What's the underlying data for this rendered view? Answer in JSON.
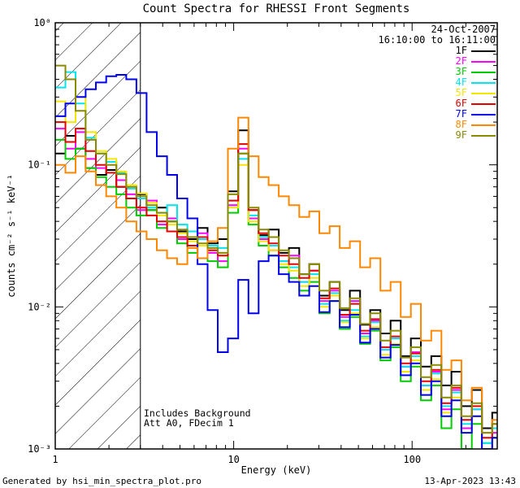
{
  "title": "Count Spectra for RHESSI Front Segments",
  "legend": {
    "date": "24-Oct-2007",
    "time": "16:10:00 to 16:11:00"
  },
  "annotations": {
    "line1": "Includes Background",
    "line2": "Att A0, FDecim 1"
  },
  "footer": {
    "left": "Generated by hsi_min_spectra_plot.pro",
    "right": "13-Apr-2023 13:43"
  },
  "axes": {
    "xlabel": "Energy (keV)",
    "ylabel": "counts cm⁻² s⁻¹ keV⁻¹"
  },
  "chart_data": {
    "type": "line",
    "subtype": "stepped-histogram-log-log",
    "x_scale": "log",
    "y_scale": "log",
    "xlim": [
      1,
      300
    ],
    "ylim": [
      0.001,
      1
    ],
    "grid": false,
    "legend_position": "top-right",
    "x_ticks": [
      {
        "label": "1",
        "value": 1
      },
      {
        "label": "10",
        "value": 10
      },
      {
        "label": "100",
        "value": 100
      }
    ],
    "y_ticks": [
      {
        "label": "10⁰",
        "value": 1
      },
      {
        "label": "10⁻¹",
        "value": 0.1
      },
      {
        "label": "10⁻²",
        "value": 0.01
      },
      {
        "label": "10⁻³",
        "value": 0.001
      }
    ],
    "hatched_region": {
      "x_start": 1,
      "x_end": 3
    },
    "x": [
      1.0,
      1.14,
      1.3,
      1.48,
      1.69,
      1.93,
      2.2,
      2.5,
      2.85,
      3.25,
      3.71,
      4.23,
      4.82,
      5.5,
      6.27,
      7.14,
      8.14,
      9.28,
      10.6,
      12.1,
      13.8,
      15.7,
      17.9,
      20.4,
      23.3,
      26.5,
      30.2,
      34.5,
      39.3,
      44.8,
      51.1,
      58.2,
      66.4,
      75.7,
      86.3,
      98.4,
      112,
      128,
      146,
      166,
      189,
      216,
      246,
      281
    ],
    "series": [
      {
        "name": "1F",
        "color": "#000000",
        "values": [
          0.12,
          0.16,
          0.13,
          0.095,
          0.085,
          0.092,
          0.07,
          0.058,
          0.062,
          0.048,
          0.05,
          0.04,
          0.034,
          0.03,
          0.036,
          0.028,
          0.03,
          0.065,
          0.175,
          0.048,
          0.032,
          0.035,
          0.024,
          0.026,
          0.017,
          0.02,
          0.012,
          0.015,
          0.0095,
          0.013,
          0.0075,
          0.0095,
          0.0065,
          0.008,
          0.0045,
          0.006,
          0.0038,
          0.0045,
          0.0028,
          0.0035,
          0.002,
          0.0026,
          0.0014,
          0.0018
        ]
      },
      {
        "name": "2F",
        "color": "#ff00ff",
        "values": [
          0.18,
          0.13,
          0.17,
          0.11,
          0.095,
          0.105,
          0.078,
          0.062,
          0.048,
          0.056,
          0.038,
          0.042,
          0.03,
          0.027,
          0.033,
          0.024,
          0.021,
          0.052,
          0.13,
          0.042,
          0.03,
          0.025,
          0.021,
          0.023,
          0.015,
          0.018,
          0.011,
          0.013,
          0.0085,
          0.011,
          0.0065,
          0.008,
          0.005,
          0.006,
          0.0038,
          0.0048,
          0.0028,
          0.0035,
          0.0019,
          0.0026,
          0.0014,
          0.0019,
          0.001,
          0.0013
        ]
      },
      {
        "name": "3F",
        "color": "#00cc00",
        "values": [
          0.15,
          0.11,
          0.13,
          0.095,
          0.082,
          0.07,
          0.062,
          0.05,
          0.044,
          0.048,
          0.036,
          0.04,
          0.028,
          0.024,
          0.03,
          0.021,
          0.019,
          0.046,
          0.12,
          0.038,
          0.027,
          0.023,
          0.019,
          0.016,
          0.013,
          0.015,
          0.009,
          0.011,
          0.007,
          0.0085,
          0.0055,
          0.0068,
          0.0042,
          0.0052,
          0.003,
          0.0038,
          0.0022,
          0.0028,
          0.0014,
          0.0019,
          0.001,
          0.0015,
          0.0011,
          0.0012
        ]
      },
      {
        "name": "4F",
        "color": "#00e5ee",
        "values": [
          0.35,
          0.45,
          0.27,
          0.155,
          0.12,
          0.105,
          0.088,
          0.068,
          0.058,
          0.05,
          0.046,
          0.052,
          0.038,
          0.034,
          0.03,
          0.027,
          0.026,
          0.056,
          0.11,
          0.044,
          0.031,
          0.027,
          0.021,
          0.019,
          0.015,
          0.017,
          0.0105,
          0.0125,
          0.008,
          0.0095,
          0.0062,
          0.0078,
          0.005,
          0.006,
          0.0038,
          0.0045,
          0.0028,
          0.0034,
          0.002,
          0.0025,
          0.0015,
          0.0019,
          0.0011,
          0.0014
        ]
      },
      {
        "name": "5F",
        "color": "#f5e600",
        "values": [
          0.28,
          0.2,
          0.3,
          0.17,
          0.125,
          0.11,
          0.09,
          0.072,
          0.063,
          0.054,
          0.044,
          0.038,
          0.033,
          0.029,
          0.027,
          0.025,
          0.023,
          0.05,
          0.1,
          0.04,
          0.029,
          0.025,
          0.02,
          0.018,
          0.014,
          0.016,
          0.01,
          0.012,
          0.0078,
          0.009,
          0.006,
          0.0072,
          0.0046,
          0.0055,
          0.0035,
          0.0042,
          0.0026,
          0.0031,
          0.0018,
          0.0023,
          0.0013,
          0.0017,
          0.001,
          0.0012
        ]
      },
      {
        "name": "6F",
        "color": "#e60000",
        "values": [
          0.2,
          0.145,
          0.18,
          0.125,
          0.1,
          0.088,
          0.07,
          0.058,
          0.05,
          0.044,
          0.04,
          0.034,
          0.031,
          0.027,
          0.031,
          0.025,
          0.023,
          0.056,
          0.14,
          0.048,
          0.033,
          0.028,
          0.023,
          0.02,
          0.016,
          0.018,
          0.0115,
          0.0135,
          0.0088,
          0.0105,
          0.0068,
          0.0082,
          0.0052,
          0.0062,
          0.004,
          0.0047,
          0.003,
          0.0036,
          0.0021,
          0.0027,
          0.0016,
          0.002,
          0.0012,
          0.0015
        ]
      },
      {
        "name": "7F",
        "color": "#0000ee",
        "values": [
          0.22,
          0.27,
          0.3,
          0.34,
          0.38,
          0.42,
          0.43,
          0.4,
          0.32,
          0.17,
          0.115,
          0.085,
          0.058,
          0.042,
          0.02,
          0.0095,
          0.0048,
          0.006,
          0.0155,
          0.009,
          0.021,
          0.023,
          0.017,
          0.015,
          0.012,
          0.014,
          0.0092,
          0.011,
          0.0072,
          0.0088,
          0.0056,
          0.007,
          0.0044,
          0.0054,
          0.0033,
          0.004,
          0.0024,
          0.003,
          0.0017,
          0.0022,
          0.0013,
          0.0017,
          0.001,
          0.0012
        ]
      },
      {
        "name": "8F",
        "color": "#ff8800",
        "values": [
          0.1,
          0.088,
          0.115,
          0.09,
          0.072,
          0.06,
          0.05,
          0.04,
          0.034,
          0.03,
          0.025,
          0.022,
          0.02,
          0.026,
          0.022,
          0.029,
          0.036,
          0.13,
          0.215,
          0.115,
          0.082,
          0.072,
          0.06,
          0.052,
          0.043,
          0.047,
          0.033,
          0.037,
          0.026,
          0.029,
          0.019,
          0.022,
          0.013,
          0.015,
          0.0085,
          0.0105,
          0.0058,
          0.0068,
          0.0036,
          0.0042,
          0.0022,
          0.0027,
          0.0013,
          0.0016
        ]
      },
      {
        "name": "9F",
        "color": "#8a8a00",
        "values": [
          0.5,
          0.4,
          0.24,
          0.15,
          0.12,
          0.1,
          0.086,
          0.07,
          0.06,
          0.052,
          0.046,
          0.04,
          0.035,
          0.031,
          0.028,
          0.026,
          0.024,
          0.062,
          0.12,
          0.05,
          0.035,
          0.031,
          0.025,
          0.022,
          0.017,
          0.02,
          0.013,
          0.015,
          0.0098,
          0.0115,
          0.0076,
          0.009,
          0.0058,
          0.0068,
          0.0044,
          0.0052,
          0.0032,
          0.0039,
          0.0023,
          0.0028,
          0.0017,
          0.0021,
          0.0013,
          0.0015
        ]
      }
    ]
  }
}
